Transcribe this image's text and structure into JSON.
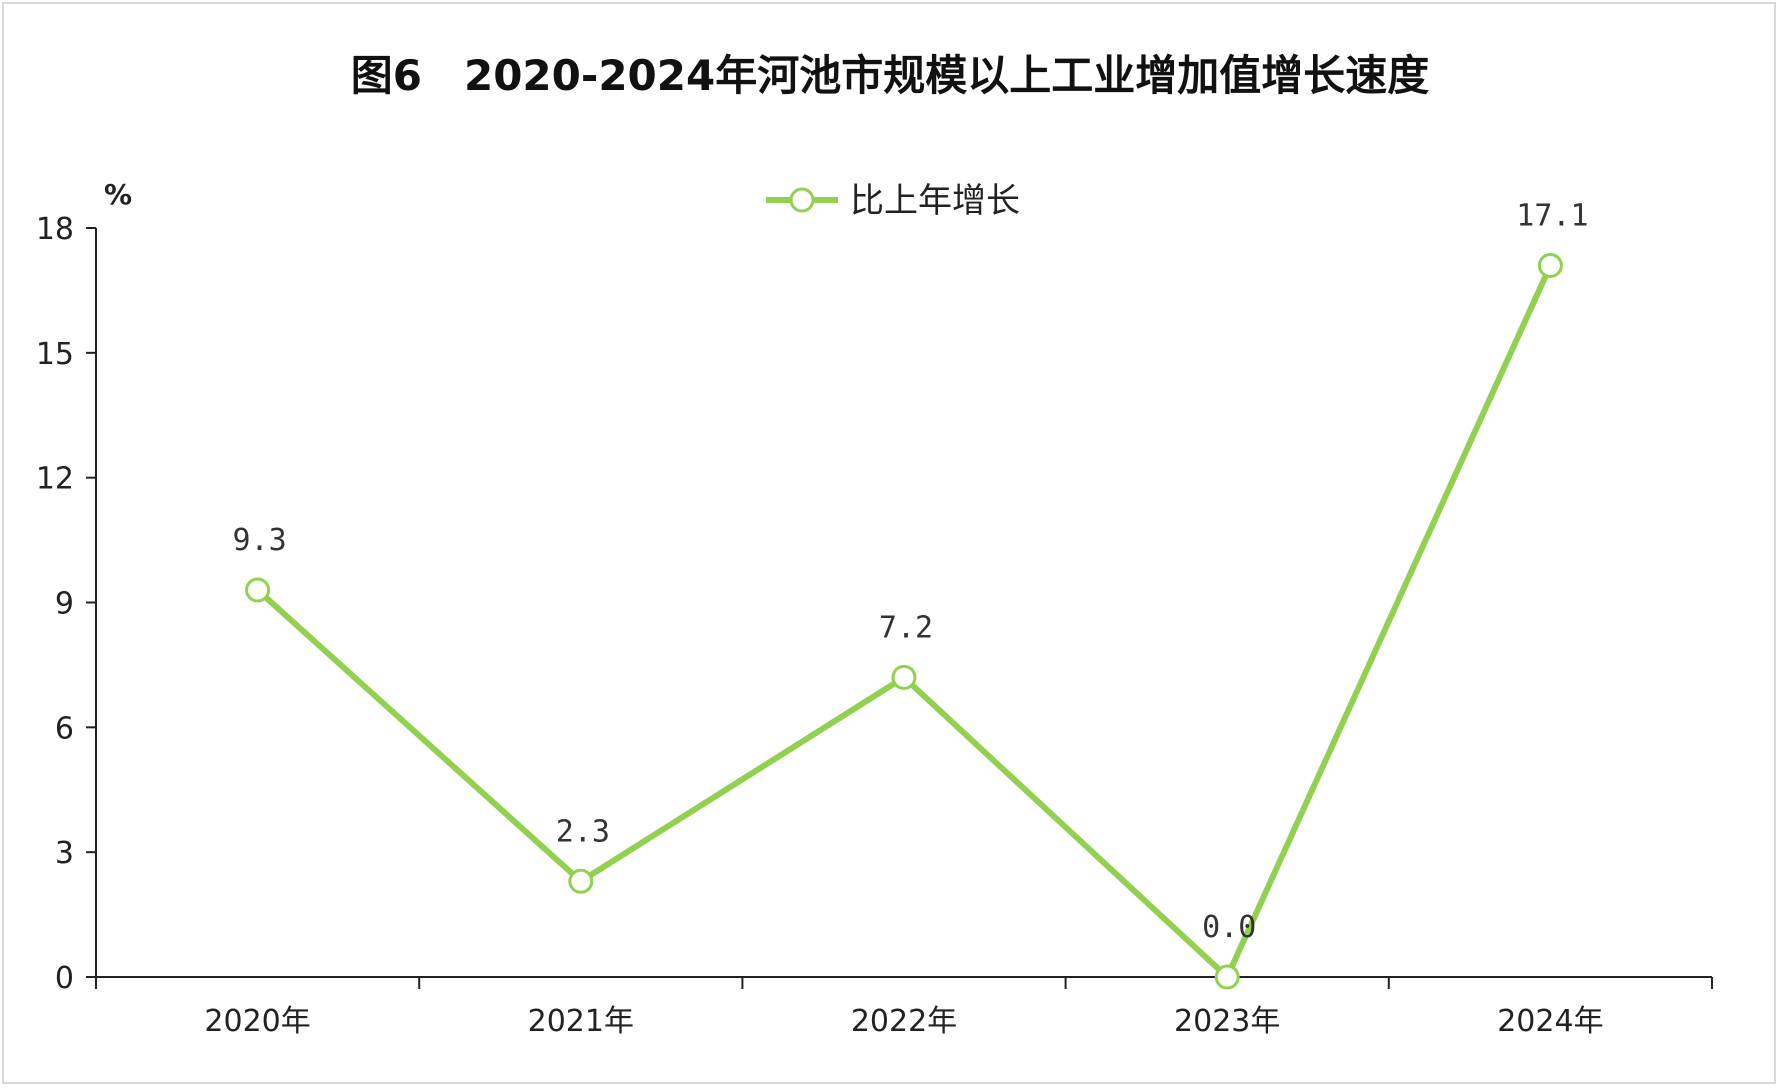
{
  "chart_data": {
    "type": "line",
    "title": "图6　2020-2024年河池市规模以上工业增加值增长速度",
    "ylabel": "%",
    "xlabel": "",
    "categories": [
      "2020年",
      "2021年",
      "2022年",
      "2023年",
      "2024年"
    ],
    "series": [
      {
        "name": "比上年增长",
        "values": [
          9.3,
          2.3,
          7.2,
          0.0,
          17.1
        ],
        "labels": [
          "9.3",
          "2.3",
          "7.2",
          "0.0",
          "17.1"
        ],
        "color": "#92d050"
      }
    ],
    "yticks": [
      "0",
      "3",
      "6",
      "9",
      "12",
      "15",
      "18"
    ],
    "ylim": [
      0,
      18
    ],
    "grid": false,
    "legend_position": "top-center"
  }
}
